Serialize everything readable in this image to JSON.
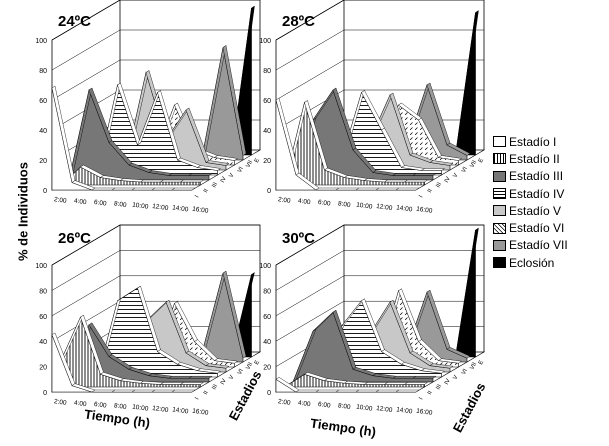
{
  "figure": {
    "ylabel": "% de Individuos",
    "xlabel": "Tiempo (h)",
    "zlabel": "Estadios"
  },
  "legend": [
    {
      "label": "Estadío I",
      "fill": "#ffffff",
      "pattern": "none"
    },
    {
      "label": "Estadío II",
      "fill": "#ffffff",
      "pattern": "vertical-lines"
    },
    {
      "label": "Estadío III",
      "fill": "#777777",
      "pattern": "none"
    },
    {
      "label": "Estadío IV",
      "fill": "#ffffff",
      "pattern": "horizontal-lines"
    },
    {
      "label": "Estadío V",
      "fill": "#c8c8c8",
      "pattern": "none"
    },
    {
      "label": "Estadío VI",
      "fill": "#ffffff",
      "pattern": "diagonal-dashes"
    },
    {
      "label": "Estadío VII",
      "fill": "#999999",
      "pattern": "none"
    },
    {
      "label": "Eclosión",
      "fill": "#000000",
      "pattern": "none"
    }
  ],
  "chart_data": [
    {
      "type": "area",
      "title": "24ºC",
      "x": [
        "2:00",
        "4:00",
        "6:00",
        "8:00",
        "10:00",
        "12:00",
        "14:00",
        "16:00"
      ],
      "ylim": [
        0,
        100
      ],
      "yticks": [
        0,
        20,
        40,
        60,
        80,
        100
      ],
      "ztick_labels": [
        "I",
        "II",
        "III",
        "IV",
        "V",
        "VI",
        "VII",
        "E"
      ],
      "series": [
        {
          "name": "Estadío I",
          "values": [
            68,
            5,
            0,
            0,
            0,
            0,
            0,
            0
          ]
        },
        {
          "name": "Estadío II",
          "values": [
            0,
            12,
            5,
            3,
            2,
            2,
            2,
            2
          ]
        },
        {
          "name": "Estadío III",
          "values": [
            0,
            60,
            25,
            10,
            5,
            3,
            3,
            3
          ]
        },
        {
          "name": "Estadío IV",
          "values": [
            0,
            0,
            60,
            20,
            55,
            10,
            5,
            3
          ]
        },
        {
          "name": "Estadío V",
          "values": [
            0,
            0,
            5,
            65,
            20,
            40,
            5,
            3
          ]
        },
        {
          "name": "Estadío VI",
          "values": [
            0,
            0,
            0,
            5,
            40,
            10,
            5,
            3
          ]
        },
        {
          "name": "Estadío VII",
          "values": [
            0,
            0,
            0,
            0,
            5,
            5,
            75,
            3
          ]
        },
        {
          "name": "Eclosión",
          "values": [
            0,
            0,
            0,
            0,
            0,
            0,
            0,
            98
          ]
        }
      ]
    },
    {
      "type": "area",
      "title": "28ºC",
      "x": [
        "2:00",
        "4:00",
        "6:00",
        "8:00",
        "10:00",
        "12:00",
        "14:00",
        "16:00"
      ],
      "ylim": [
        0,
        100
      ],
      "yticks": [
        0,
        20,
        40,
        60,
        80,
        100
      ],
      "ztick_labels": [
        "I",
        "II",
        "III",
        "IV",
        "V",
        "VI",
        "VII",
        "E"
      ],
      "series": [
        {
          "name": "Estadío I",
          "values": [
            60,
            10,
            0,
            0,
            0,
            0,
            0,
            0
          ]
        },
        {
          "name": "Estadío II",
          "values": [
            0,
            55,
            10,
            5,
            3,
            2,
            2,
            2
          ]
        },
        {
          "name": "Estadío III",
          "values": [
            0,
            40,
            60,
            20,
            5,
            3,
            3,
            3
          ]
        },
        {
          "name": "Estadío IV",
          "values": [
            0,
            0,
            10,
            55,
            30,
            5,
            3,
            3
          ]
        },
        {
          "name": "Estadío V",
          "values": [
            0,
            0,
            0,
            20,
            50,
            10,
            5,
            3
          ]
        },
        {
          "name": "Estadío VI",
          "values": [
            0,
            0,
            0,
            5,
            40,
            30,
            5,
            3
          ]
        },
        {
          "name": "Estadío VII",
          "values": [
            0,
            0,
            0,
            0,
            10,
            50,
            10,
            3
          ]
        },
        {
          "name": "Eclosión",
          "values": [
            0,
            0,
            0,
            0,
            0,
            0,
            0,
            95
          ]
        }
      ]
    },
    {
      "type": "area",
      "title": "26ºC",
      "x": [
        "2:00",
        "4:00",
        "6:00",
        "8:00",
        "10:00",
        "12:00",
        "14:00",
        "16:00"
      ],
      "ylim": [
        0,
        100
      ],
      "yticks": [
        0,
        20,
        40,
        60,
        80,
        100
      ],
      "ztick_labels": [
        "I",
        "II",
        "III",
        "IV",
        "V",
        "VI",
        "VII",
        "E"
      ],
      "series": [
        {
          "name": "Estadío I",
          "values": [
            45,
            5,
            0,
            0,
            0,
            0,
            0,
            0
          ]
        },
        {
          "name": "Estadío II",
          "values": [
            20,
            55,
            10,
            5,
            3,
            2,
            2,
            2
          ]
        },
        {
          "name": "Estadío III",
          "values": [
            0,
            45,
            20,
            10,
            5,
            3,
            3,
            3
          ]
        },
        {
          "name": "Estadío IV",
          "values": [
            0,
            0,
            60,
            70,
            20,
            10,
            5,
            3
          ]
        },
        {
          "name": "Estadío V",
          "values": [
            0,
            0,
            5,
            40,
            55,
            15,
            5,
            3
          ]
        },
        {
          "name": "Estadío VI",
          "values": [
            0,
            0,
            0,
            5,
            50,
            20,
            5,
            3
          ]
        },
        {
          "name": "Estadío VII",
          "values": [
            0,
            0,
            0,
            0,
            5,
            10,
            70,
            3
          ]
        },
        {
          "name": "Eclosión",
          "values": [
            0,
            0,
            0,
            0,
            0,
            0,
            0,
            65
          ]
        }
      ]
    },
    {
      "type": "area",
      "title": "30ºC",
      "x": [
        "2:00",
        "4:00",
        "6:00",
        "8:00",
        "10:00",
        "12:00",
        "14:00",
        "16:00"
      ],
      "ylim": [
        0,
        100
      ],
      "yticks": [
        0,
        20,
        40,
        60,
        80,
        100
      ],
      "ztick_labels": [
        "I",
        "II",
        "III",
        "IV",
        "V",
        "VI",
        "VII",
        "E"
      ],
      "series": [
        {
          "name": "Estadío I",
          "values": [
            10,
            0,
            0,
            0,
            0,
            0,
            0,
            0
          ]
        },
        {
          "name": "Estadío II",
          "values": [
            0,
            10,
            5,
            3,
            2,
            2,
            2,
            2
          ]
        },
        {
          "name": "Estadío III",
          "values": [
            0,
            40,
            55,
            10,
            5,
            3,
            3,
            3
          ]
        },
        {
          "name": "Estadío IV",
          "values": [
            0,
            0,
            40,
            60,
            20,
            10,
            5,
            3
          ]
        },
        {
          "name": "Estadío V",
          "values": [
            0,
            0,
            5,
            30,
            55,
            15,
            5,
            3
          ]
        },
        {
          "name": "Estadío VI",
          "values": [
            0,
            0,
            0,
            5,
            60,
            20,
            5,
            3
          ]
        },
        {
          "name": "Estadío VII",
          "values": [
            0,
            0,
            0,
            0,
            10,
            55,
            10,
            3
          ]
        },
        {
          "name": "Eclosión",
          "values": [
            0,
            0,
            0,
            0,
            0,
            0,
            0,
            100
          ]
        }
      ]
    }
  ]
}
